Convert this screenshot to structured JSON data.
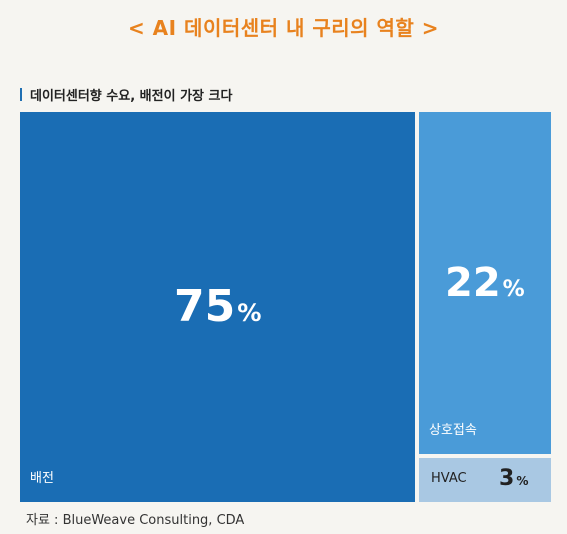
{
  "title": "< AI 데이터센터 내 구리의 역할 >",
  "subtitle": "데이터센터향 수요, 배전이 가장 크다",
  "source": "자료 : BlueWeave Consulting, CDA",
  "colors": {
    "title": "#e8821e",
    "power_distribution": "#1a6db4",
    "interconnect": "#4a9bd8",
    "hvac": "#a9c8e3"
  },
  "chart_data": {
    "type": "treemap",
    "unit": "%",
    "items": [
      {
        "label": "배전",
        "value": 75,
        "value_text": "75",
        "color": "#1a6db4"
      },
      {
        "label": "상호접속",
        "value": 22,
        "value_text": "22",
        "color": "#4a9bd8"
      },
      {
        "label": "HVAC",
        "value": 3,
        "value_text": "3",
        "color": "#a9c8e3"
      }
    ]
  }
}
